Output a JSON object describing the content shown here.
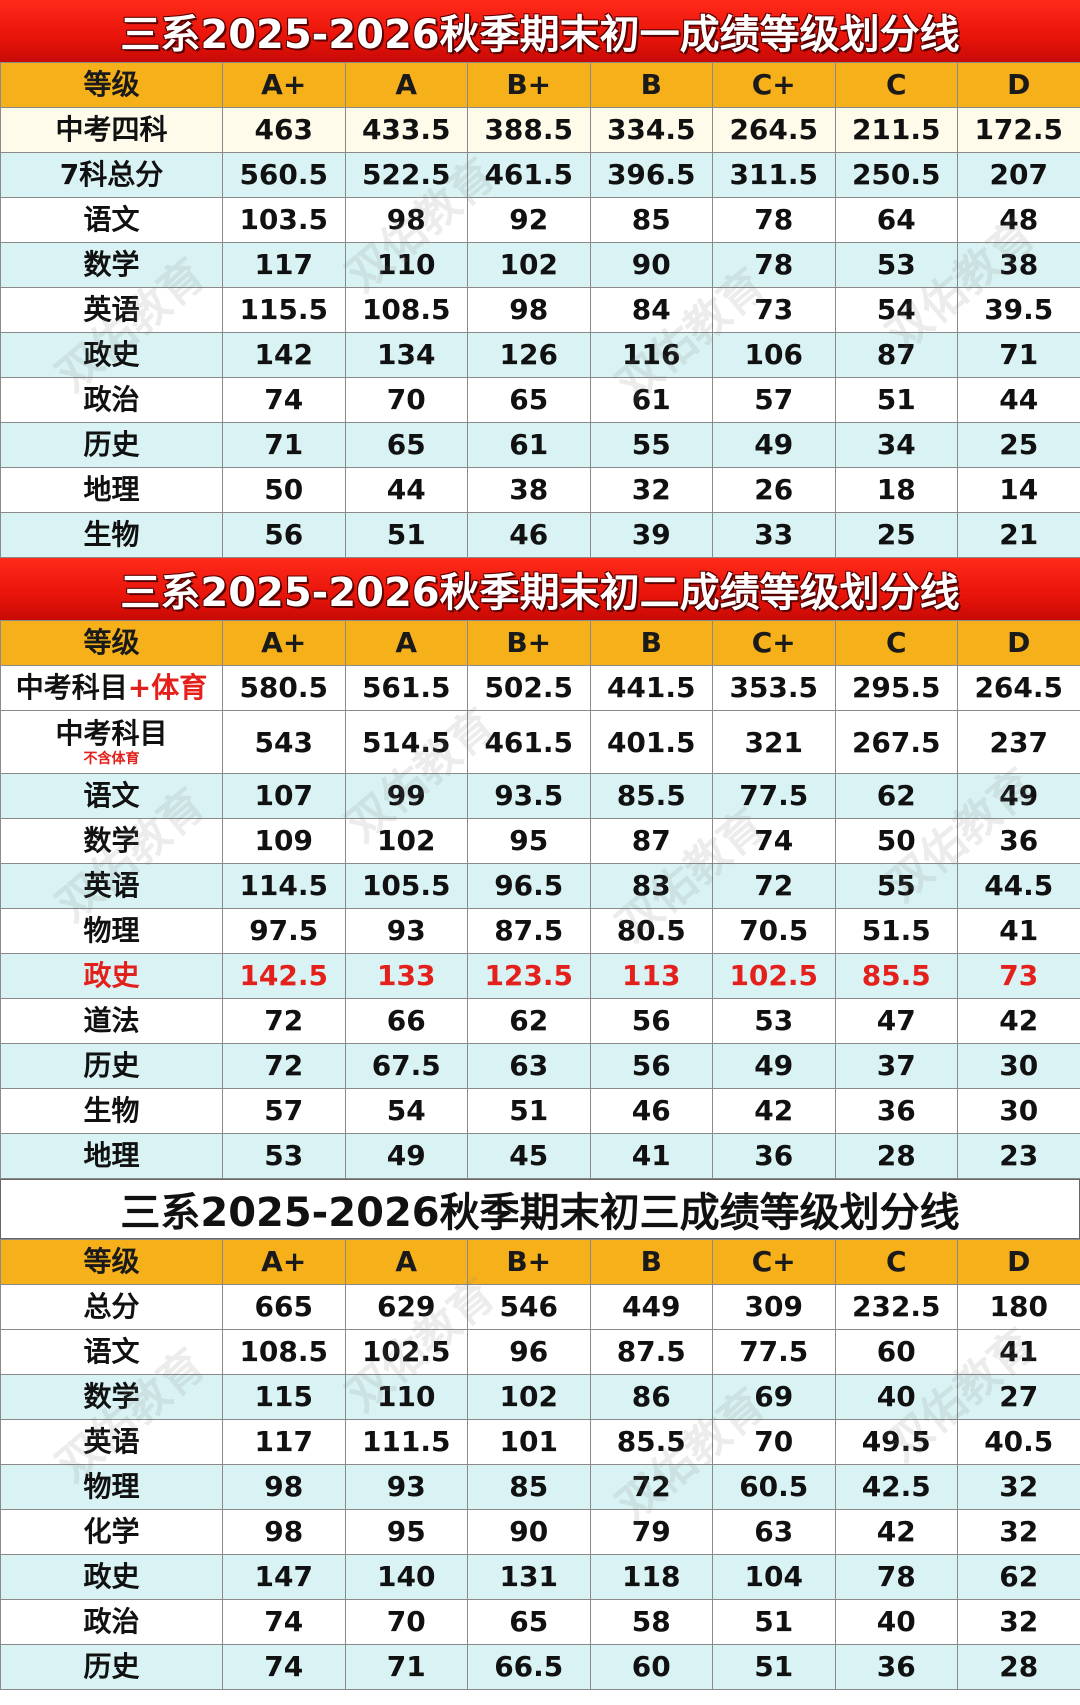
{
  "watermark": "双佑教育",
  "grades": [
    "A+",
    "A",
    "B+",
    "B",
    "C+",
    "C",
    "D"
  ],
  "sections": [
    {
      "title": "三系2025-2026秋季期末初一成绩等级划分线",
      "header_label": "等级",
      "rows": [
        {
          "label": "中考四科",
          "values": [
            "463",
            "433.5",
            "388.5",
            "334.5",
            "264.5",
            "211.5",
            "172.5"
          ]
        },
        {
          "label": "7科总分",
          "values": [
            "560.5",
            "522.5",
            "461.5",
            "396.5",
            "311.5",
            "250.5",
            "207"
          ]
        },
        {
          "label": "语文",
          "values": [
            "103.5",
            "98",
            "92",
            "85",
            "78",
            "64",
            "48"
          ]
        },
        {
          "label": "数学",
          "values": [
            "117",
            "110",
            "102",
            "90",
            "78",
            "53",
            "38"
          ]
        },
        {
          "label": "英语",
          "values": [
            "115.5",
            "108.5",
            "98",
            "84",
            "73",
            "54",
            "39.5"
          ]
        },
        {
          "label": "政史",
          "values": [
            "142",
            "134",
            "126",
            "116",
            "106",
            "87",
            "71"
          ]
        },
        {
          "label": "政治",
          "values": [
            "74",
            "70",
            "65",
            "61",
            "57",
            "51",
            "44"
          ]
        },
        {
          "label": "历史",
          "values": [
            "71",
            "65",
            "61",
            "55",
            "49",
            "34",
            "25"
          ]
        },
        {
          "label": "地理",
          "values": [
            "50",
            "44",
            "38",
            "32",
            "26",
            "18",
            "14"
          ]
        },
        {
          "label": "生物",
          "values": [
            "56",
            "51",
            "46",
            "39",
            "33",
            "25",
            "21"
          ]
        }
      ]
    },
    {
      "title": "三系2025-2026秋季期末初二成绩等级划分线",
      "header_label": "等级",
      "rows": [
        {
          "label": "中考科目",
          "label_extra": "+体育",
          "values": [
            "580.5",
            "561.5",
            "502.5",
            "441.5",
            "353.5",
            "295.5",
            "264.5"
          ]
        },
        {
          "label": "中考科目",
          "label_note": "不含体育",
          "values": [
            "543",
            "514.5",
            "461.5",
            "401.5",
            "321",
            "267.5",
            "237"
          ]
        },
        {
          "label": "语文",
          "values": [
            "107",
            "99",
            "93.5",
            "85.5",
            "77.5",
            "62",
            "49"
          ]
        },
        {
          "label": "数学",
          "values": [
            "109",
            "102",
            "95",
            "87",
            "74",
            "50",
            "36"
          ]
        },
        {
          "label": "英语",
          "values": [
            "114.5",
            "105.5",
            "96.5",
            "83",
            "72",
            "55",
            "44.5"
          ]
        },
        {
          "label": "物理",
          "values": [
            "97.5",
            "93",
            "87.5",
            "80.5",
            "70.5",
            "51.5",
            "41"
          ]
        },
        {
          "label": "政史",
          "values": [
            "142.5",
            "133",
            "123.5",
            "113",
            "102.5",
            "85.5",
            "73"
          ]
        },
        {
          "label": "道法",
          "values": [
            "72",
            "66",
            "62",
            "56",
            "53",
            "47",
            "42"
          ]
        },
        {
          "label": "历史",
          "values": [
            "72",
            "67.5",
            "63",
            "56",
            "49",
            "37",
            "30"
          ]
        },
        {
          "label": "生物",
          "values": [
            "57",
            "54",
            "51",
            "46",
            "42",
            "36",
            "30"
          ]
        },
        {
          "label": "地理",
          "values": [
            "53",
            "49",
            "45",
            "41",
            "36",
            "28",
            "23"
          ]
        }
      ]
    },
    {
      "title": "三系2025-2026秋季期末初三成绩等级划分线",
      "header_label": "等级",
      "rows": [
        {
          "label": "总分",
          "values": [
            "665",
            "629",
            "546",
            "449",
            "309",
            "232.5",
            "180"
          ]
        },
        {
          "label": "语文",
          "values": [
            "108.5",
            "102.5",
            "96",
            "87.5",
            "77.5",
            "60",
            "41"
          ]
        },
        {
          "label": "数学",
          "values": [
            "115",
            "110",
            "102",
            "86",
            "69",
            "40",
            "27"
          ]
        },
        {
          "label": "英语",
          "values": [
            "117",
            "111.5",
            "101",
            "85.5",
            "70",
            "49.5",
            "40.5"
          ]
        },
        {
          "label": "物理",
          "values": [
            "98",
            "93",
            "85",
            "72",
            "60.5",
            "42.5",
            "32"
          ]
        },
        {
          "label": "化学",
          "values": [
            "98",
            "95",
            "90",
            "79",
            "63",
            "42",
            "32"
          ]
        },
        {
          "label": "政史",
          "values": [
            "147",
            "140",
            "131",
            "118",
            "104",
            "78",
            "62"
          ]
        },
        {
          "label": "政治",
          "values": [
            "74",
            "70",
            "65",
            "58",
            "51",
            "40",
            "32"
          ]
        },
        {
          "label": "历史",
          "values": [
            "74",
            "71",
            "66.5",
            "60",
            "51",
            "36",
            "28"
          ]
        }
      ]
    }
  ]
}
